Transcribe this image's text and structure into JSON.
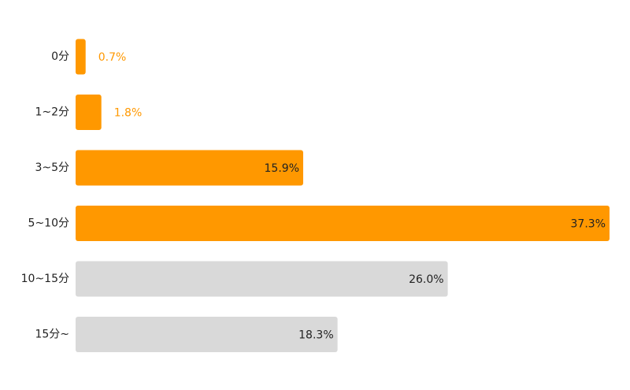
{
  "chart_data": {
    "type": "bar",
    "orientation": "horizontal",
    "categories": [
      "0分",
      "1~2分",
      "3~5分",
      "5~10分",
      "10~15分",
      "15分~"
    ],
    "values": [
      0.7,
      1.8,
      15.9,
      37.3,
      26.0,
      18.3
    ],
    "value_labels": [
      "0.7%",
      "1.8%",
      "15.9%",
      "37.3%",
      "26.0%",
      "18.3%"
    ],
    "highlighted": [
      true,
      true,
      true,
      true,
      false,
      false
    ],
    "xlim": [
      0,
      37.3
    ],
    "grid": false,
    "title": "",
    "xlabel": "",
    "ylabel": ""
  },
  "colors": {
    "highlight": "#ff9800",
    "muted": "#d9d9d9",
    "label_dark": "#222222",
    "label_highlight": "#ff9800",
    "background": "#ffffff"
  }
}
